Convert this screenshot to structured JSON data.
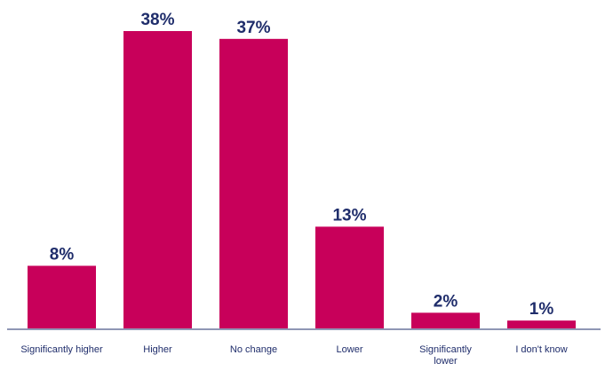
{
  "chart_data": {
    "type": "bar",
    "categories": [
      [
        "Significantly higher"
      ],
      [
        "Higher"
      ],
      [
        "No change"
      ],
      [
        "Lower"
      ],
      [
        "Significantly",
        "lower"
      ],
      [
        "I don't know"
      ]
    ],
    "values": [
      8,
      38,
      37,
      13,
      2,
      1
    ],
    "value_labels": [
      "8%",
      "38%",
      "37%",
      "13%",
      "2%",
      "1%"
    ],
    "ylim": [
      0,
      38
    ],
    "bar_color": "#c8005a",
    "text_color": "#1f2d6b",
    "grid": false,
    "legend": "none"
  }
}
